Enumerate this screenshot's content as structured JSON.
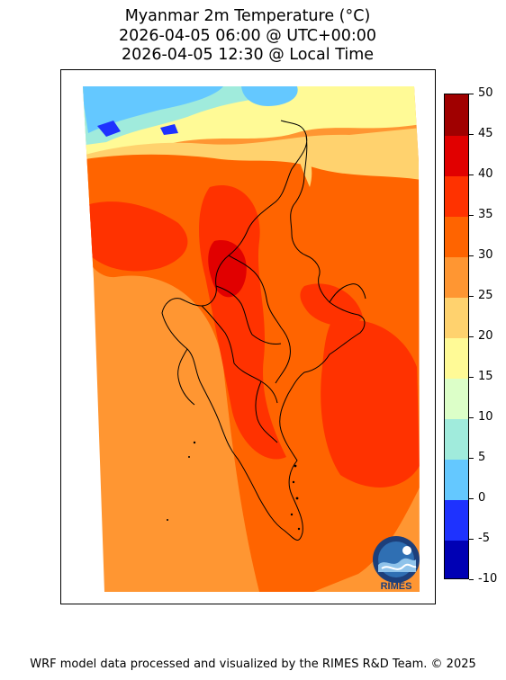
{
  "title": {
    "line1": "Myanmar 2m Temperature (°C)",
    "line2": "2026-04-05 06:00 @ UTC+00:00",
    "line3": "2026-04-05 12:30 @ Local Time"
  },
  "colorbar": {
    "levels": [
      -10,
      -5,
      0,
      5,
      10,
      15,
      20,
      25,
      30,
      35,
      40,
      45,
      50
    ],
    "labels": [
      "50",
      "45",
      "40",
      "35",
      "30",
      "25",
      "20",
      "15",
      "10",
      "5",
      "0",
      "-5",
      "-10"
    ],
    "colors": [
      "#0000b4",
      "#1e32ff",
      "#64c8ff",
      "#a0ebdc",
      "#dcffc8",
      "#fffa96",
      "#ffd26e",
      "#ff9632",
      "#ff6400",
      "#ff3200",
      "#e10000",
      "#a00000"
    ]
  },
  "logo": {
    "text": "RIMES"
  },
  "footer": "WRF model data processed and visualized by the RIMES R&D Team. © 2025"
}
